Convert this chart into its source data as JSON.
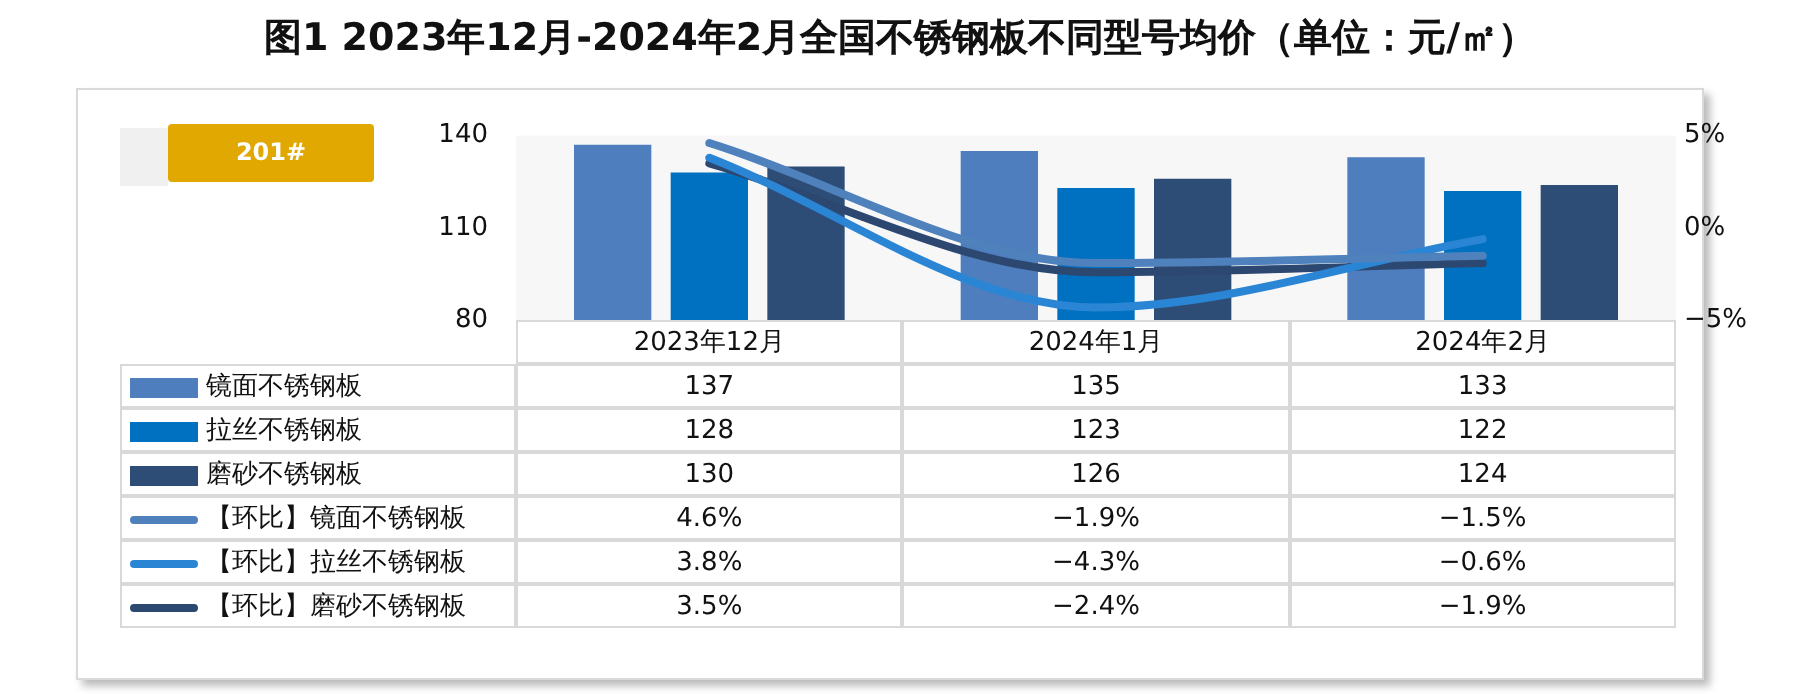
{
  "chart_data": {
    "type": "bar",
    "title": "图1 2023年12月-2024年2月全国不锈钢板不同型号均价（单位：元/㎡）",
    "annotations": [
      "201#"
    ],
    "categories": [
      "2023年12月",
      "2024年1月",
      "2024年2月"
    ],
    "ylim": [
      80,
      140
    ],
    "yticks": [
      80,
      110,
      140
    ],
    "y2lim": [
      -5,
      5
    ],
    "y2ticks": [
      {
        "value": -5,
        "label": "−5%"
      },
      {
        "value": 0,
        "label": "0%"
      },
      {
        "value": 5,
        "label": "5%"
      }
    ],
    "grid": false,
    "data_labels": true,
    "legend": "left",
    "series": [
      {
        "name": "镜面不锈钢板",
        "color": "#4f7ebe",
        "values": [
          137,
          135,
          133
        ],
        "value_labels": [
          "137",
          "135",
          "133"
        ]
      },
      {
        "name": "拉丝不锈钢板",
        "color": "#0070c0",
        "values": [
          128,
          123,
          122
        ],
        "value_labels": [
          "128",
          "123",
          "122"
        ]
      },
      {
        "name": "磨砂不锈钢板",
        "color": "#2d4d76",
        "values": [
          130,
          126,
          124
        ],
        "value_labels": [
          "130",
          "126",
          "124"
        ]
      },
      {
        "name": "【环比】镜面不锈钢板",
        "type": "line",
        "axis": "y2",
        "color": "#4f81bd",
        "values": [
          4.6,
          -1.9,
          -1.5
        ],
        "value_labels": [
          "4.6%",
          "−1.9%",
          "−1.5%"
        ]
      },
      {
        "name": "【环比】拉丝不锈钢板",
        "type": "line",
        "axis": "y2",
        "color": "#2a86d4",
        "values": [
          3.8,
          -4.3,
          -0.6
        ],
        "value_labels": [
          "3.8%",
          "−4.3%",
          "−0.6%"
        ]
      },
      {
        "name": "【环比】磨砂不锈钢板",
        "type": "line",
        "axis": "y2",
        "color": "#2c4870",
        "values": [
          3.5,
          -2.4,
          -1.9
        ],
        "value_labels": [
          "3.5%",
          "−2.4%",
          "−1.9%"
        ]
      }
    ]
  }
}
